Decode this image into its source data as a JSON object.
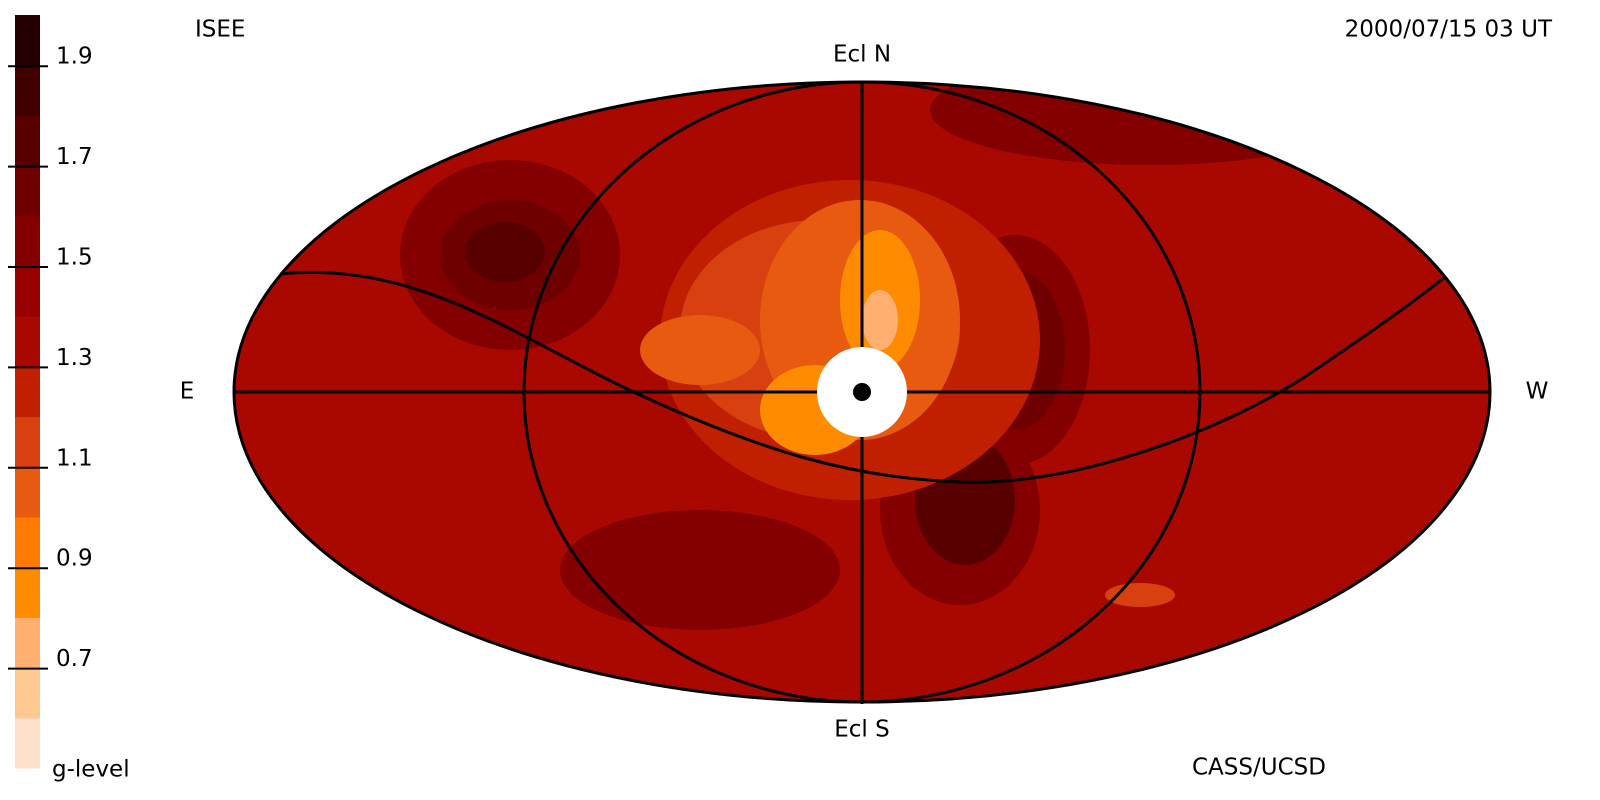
{
  "header": {
    "left": "ISEE",
    "right": "2000/07/15 03 UT"
  },
  "map": {
    "north": "Ecl N",
    "south": "Ecl S",
    "east": "E",
    "west": "W"
  },
  "footer": {
    "credit": "CASS/UCSD"
  },
  "chart_data": {
    "type": "colorbar",
    "label": "g-level",
    "ylim": [
      0.5,
      2.0
    ],
    "yticks": [
      0.7,
      0.9,
      1.1,
      1.3,
      1.5,
      1.7,
      1.9
    ],
    "colors": [
      "#ffe0c8",
      "#ffc890",
      "#ffb070",
      "#ff8c00",
      "#ff7a00",
      "#e85a10",
      "#d84010",
      "#c02000",
      "#a80800",
      "#980000",
      "#840000",
      "#6e0000",
      "#580000",
      "#400000",
      "#240000"
    ]
  }
}
